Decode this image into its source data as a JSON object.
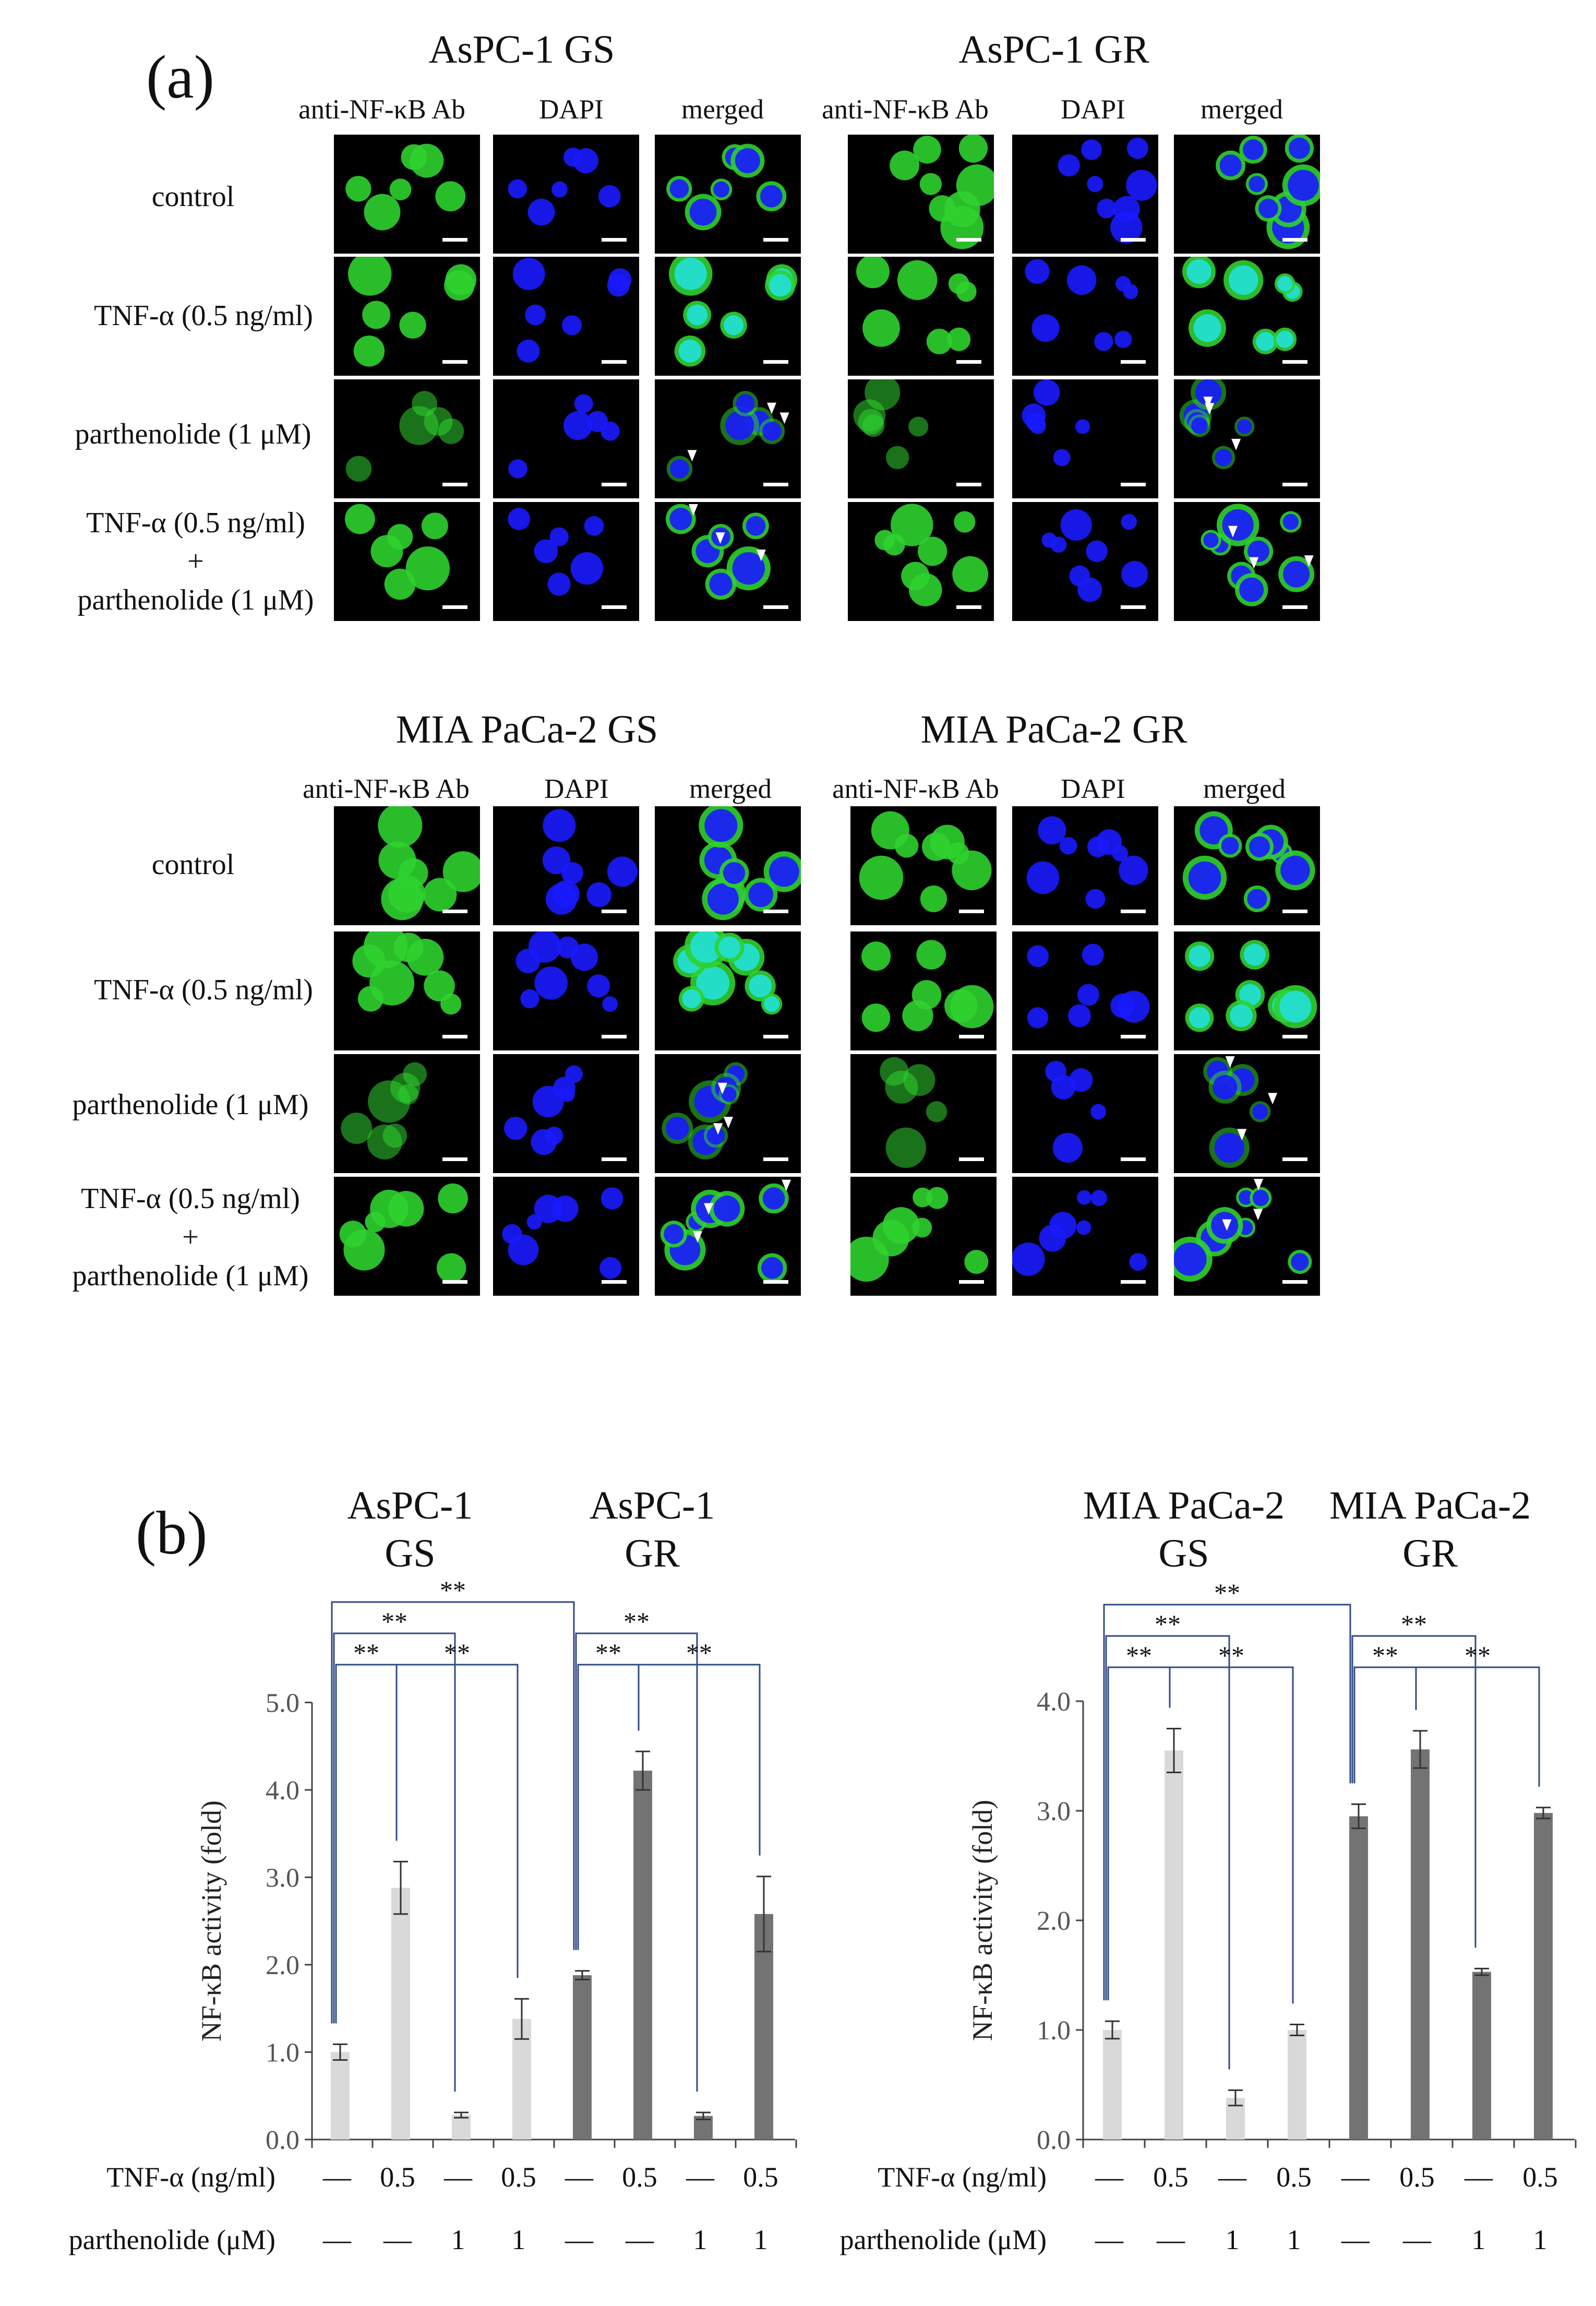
{
  "panel_a": {
    "letter": "(a)",
    "channels": [
      "anti-NF-κB Ab",
      "DAPI",
      "merged"
    ],
    "row_labels": {
      "control": "control",
      "tnf": "TNF-α (0.5 ng/ml)",
      "parthenolide": "parthenolide (1 μM)",
      "combo_line1": "TNF-α (0.5 ng/ml)",
      "combo_plus": "+",
      "combo_line2": "parthenolide (1 μM)"
    },
    "groups": [
      "AsPC-1 GS",
      "AsPC-1 GR",
      "MIA PaCa-2 GS",
      "MIA PaCa-2 GR"
    ],
    "colors": {
      "nfkb": "#2fd22f",
      "dapi": "#1a1aff",
      "merged_nucleus": "#22e0d8",
      "arrowhead": "#ffffff",
      "scale_bar": "#ffffff"
    }
  },
  "panel_b": {
    "letter": "(b)"
  },
  "chart_data": [
    {
      "type": "bar",
      "title_groups": [
        {
          "line1": "AsPC-1",
          "line2": "GS"
        },
        {
          "line1": "AsPC-1",
          "line2": "GR"
        }
      ],
      "ylabel": "NF-κB activity (fold)",
      "ylim": [
        0,
        5
      ],
      "yticks": [
        "0.0",
        "1.0",
        "2.0",
        "3.0",
        "4.0",
        "5.0"
      ],
      "values": [
        1.0,
        2.88,
        0.28,
        1.38,
        1.88,
        4.22,
        0.27,
        2.58
      ],
      "errors": [
        0.09,
        0.3,
        0.03,
        0.23,
        0.05,
        0.22,
        0.04,
        0.43
      ],
      "bar_colors": [
        "#d9d9d9",
        "#d9d9d9",
        "#d9d9d9",
        "#d9d9d9",
        "#737373",
        "#737373",
        "#737373",
        "#737373"
      ],
      "tnf_label": "TNF-α (ng/ml)",
      "tnf_values": [
        "—",
        "0.5",
        "—",
        "0.5",
        "—",
        "0.5",
        "—",
        "0.5"
      ],
      "parthenolide_label": "parthenolide (μM)",
      "parthenolide_values": [
        "—",
        "—",
        "1",
        "1",
        "—",
        "—",
        "1",
        "1"
      ],
      "significance": [
        "**",
        "**",
        "**",
        "**",
        "**",
        "**"
      ]
    },
    {
      "type": "bar",
      "title_groups": [
        {
          "line1": "MIA PaCa-2",
          "line2": "GS"
        },
        {
          "line1": "MIA PaCa-2",
          "line2": "GR"
        }
      ],
      "ylabel": "NF-κB activity (fold)",
      "ylim": [
        0,
        4
      ],
      "yticks": [
        "0.0",
        "1.0",
        "2.0",
        "3.0",
        "4.0"
      ],
      "values": [
        1.0,
        3.55,
        0.38,
        1.0,
        2.95,
        3.56,
        1.53,
        2.98
      ],
      "errors": [
        0.08,
        0.2,
        0.07,
        0.05,
        0.11,
        0.17,
        0.03,
        0.05
      ],
      "bar_colors": [
        "#d9d9d9",
        "#d9d9d9",
        "#d9d9d9",
        "#d9d9d9",
        "#737373",
        "#737373",
        "#737373",
        "#737373"
      ],
      "tnf_label": "TNF-α (ng/ml)",
      "tnf_values": [
        "—",
        "0.5",
        "—",
        "0.5",
        "—",
        "0.5",
        "—",
        "0.5"
      ],
      "parthenolide_label": "parthenolide (μM)",
      "parthenolide_values": [
        "—",
        "—",
        "1",
        "1",
        "—",
        "—",
        "1",
        "1"
      ],
      "significance": [
        "**",
        "**",
        "**",
        "**",
        "**",
        "**"
      ]
    }
  ]
}
